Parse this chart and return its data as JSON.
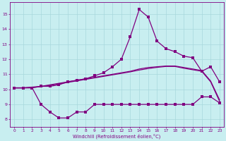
{
  "line1_x": [
    0,
    1,
    2,
    3,
    4,
    5,
    6,
    7,
    8,
    9,
    10,
    11,
    12,
    13,
    14,
    15,
    16,
    17,
    18,
    19,
    20,
    21,
    22,
    23
  ],
  "line1_y": [
    10.1,
    10.1,
    10.1,
    10.2,
    10.2,
    10.3,
    10.5,
    10.6,
    10.7,
    10.9,
    11.1,
    11.5,
    12.0,
    13.5,
    15.3,
    14.8,
    13.2,
    12.7,
    12.5,
    12.2,
    12.1,
    11.2,
    11.5,
    10.5
  ],
  "line2_x": [
    0,
    1,
    2,
    3,
    4,
    5,
    6,
    7,
    8,
    9,
    10,
    11,
    12,
    13,
    14,
    15,
    16,
    17,
    18,
    19,
    20,
    21,
    22,
    23
  ],
  "line2_y": [
    10.1,
    10.1,
    10.15,
    10.2,
    10.3,
    10.4,
    10.5,
    10.6,
    10.7,
    10.8,
    10.9,
    11.0,
    11.1,
    11.2,
    11.35,
    11.45,
    11.5,
    11.55,
    11.55,
    11.45,
    11.35,
    11.25,
    10.55,
    9.3
  ],
  "line3_x": [
    0,
    1,
    2,
    3,
    4,
    5,
    6,
    7,
    8,
    9,
    10,
    11,
    12,
    13,
    14,
    15,
    16,
    17,
    18,
    19,
    20,
    21,
    22,
    23
  ],
  "line3_y": [
    10.1,
    10.1,
    10.12,
    10.18,
    10.26,
    10.36,
    10.46,
    10.56,
    10.66,
    10.76,
    10.86,
    10.96,
    11.06,
    11.16,
    11.28,
    11.38,
    11.46,
    11.52,
    11.52,
    11.4,
    11.3,
    11.2,
    10.5,
    9.2
  ],
  "line4_x": [
    0,
    1,
    2,
    3,
    4,
    5,
    6,
    7,
    8,
    9,
    10,
    11,
    12,
    13,
    14,
    15,
    16,
    17,
    18,
    19,
    20,
    21,
    22,
    23
  ],
  "line4_y": [
    10.1,
    10.1,
    10.1,
    9.0,
    8.5,
    8.1,
    8.1,
    8.5,
    8.5,
    9.0,
    9.0,
    9.0,
    9.0,
    9.0,
    9.0,
    9.0,
    9.0,
    9.0,
    9.0,
    9.0,
    9.0,
    9.5,
    9.5,
    9.1
  ],
  "line_color": "#800080",
  "bg_color": "#c8eef0",
  "grid_color": "#a8d8dc",
  "xlabel": "Windchill (Refroidissement éolien,°C)",
  "ylim": [
    7.5,
    15.8
  ],
  "xlim": [
    -0.5,
    23.5
  ],
  "yticks": [
    8,
    9,
    10,
    11,
    12,
    13,
    14,
    15
  ],
  "xticks": [
    0,
    1,
    2,
    3,
    4,
    5,
    6,
    7,
    8,
    9,
    10,
    11,
    12,
    13,
    14,
    15,
    16,
    17,
    18,
    19,
    20,
    21,
    22,
    23
  ],
  "marker_size": 2.2,
  "line_width": 0.9
}
